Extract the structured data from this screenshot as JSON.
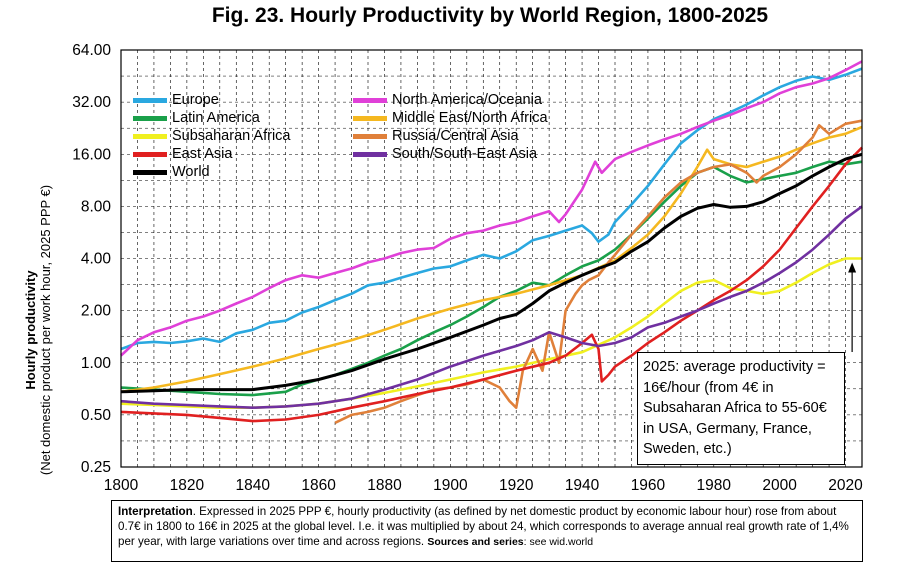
{
  "chart_data": {
    "type": "line",
    "title": "Fig. 23. Hourly Productivity by World Region, 1800-2025",
    "ylabel": "Hourly productivity",
    "ylabel_sub": "(Net domestic product per work hour, 2025 PPP €)",
    "xlabel": "",
    "xlim": [
      1800,
      2025
    ],
    "ylim": [
      0.25,
      64
    ],
    "y_scale": "log2",
    "grid": true,
    "x_ticks": [
      "1800",
      "1820",
      "1840",
      "1860",
      "1880",
      "1900",
      "1920",
      "1940",
      "1960",
      "1980",
      "2000",
      "2020"
    ],
    "x_tick_values": [
      1800,
      1820,
      1840,
      1860,
      1880,
      1900,
      1920,
      1940,
      1960,
      1980,
      2000,
      2020
    ],
    "y_ticks": [
      "0.25",
      "0.50",
      "1.00",
      "2.00",
      "4.00",
      "8.00",
      "16.00",
      "32.00",
      "64.00"
    ],
    "y_tick_values": [
      0.25,
      0.5,
      1,
      2,
      4,
      8,
      16,
      32,
      64
    ],
    "legend_position": "top-left",
    "series": [
      {
        "name": "Europe",
        "color": "#2aa8e0",
        "x": [
          1800,
          1805,
          1810,
          1815,
          1820,
          1825,
          1830,
          1835,
          1840,
          1845,
          1850,
          1855,
          1860,
          1865,
          1870,
          1875,
          1880,
          1885,
          1890,
          1895,
          1900,
          1905,
          1910,
          1915,
          1920,
          1925,
          1930,
          1935,
          1940,
          1943,
          1945,
          1948,
          1950,
          1955,
          1960,
          1965,
          1970,
          1975,
          1980,
          1985,
          1990,
          1995,
          2000,
          2005,
          2010,
          2015,
          2020,
          2025
        ],
        "y": [
          1.2,
          1.3,
          1.32,
          1.3,
          1.33,
          1.38,
          1.32,
          1.48,
          1.55,
          1.7,
          1.75,
          1.95,
          2.1,
          2.3,
          2.5,
          2.8,
          2.9,
          3.1,
          3.3,
          3.5,
          3.6,
          3.9,
          4.2,
          4.0,
          4.4,
          5.1,
          5.4,
          5.8,
          6.2,
          5.6,
          5.0,
          5.5,
          6.5,
          8.2,
          10.5,
          14.0,
          18.5,
          22.0,
          25.5,
          28.0,
          31.0,
          35.0,
          39.0,
          42.5,
          45.0,
          43.0,
          46.0,
          50.0
        ]
      },
      {
        "name": "North America/Oceania",
        "color": "#e040d8",
        "x": [
          1800,
          1805,
          1810,
          1815,
          1820,
          1825,
          1830,
          1835,
          1840,
          1845,
          1850,
          1855,
          1860,
          1865,
          1870,
          1875,
          1880,
          1885,
          1890,
          1895,
          1900,
          1905,
          1910,
          1915,
          1920,
          1925,
          1930,
          1933,
          1935,
          1940,
          1944,
          1946,
          1950,
          1955,
          1960,
          1965,
          1970,
          1975,
          1980,
          1985,
          1990,
          1995,
          2000,
          2005,
          2010,
          2015,
          2020,
          2025
        ],
        "y": [
          1.1,
          1.35,
          1.5,
          1.6,
          1.75,
          1.85,
          2.0,
          2.2,
          2.4,
          2.7,
          3.0,
          3.2,
          3.1,
          3.3,
          3.5,
          3.8,
          4.0,
          4.3,
          4.5,
          4.6,
          5.2,
          5.6,
          5.8,
          6.2,
          6.5,
          7.0,
          7.5,
          6.5,
          7.2,
          10.0,
          14.5,
          12.5,
          15.0,
          16.5,
          18.0,
          19.5,
          21.0,
          23.0,
          25.0,
          27.0,
          29.5,
          32.0,
          36.0,
          39.0,
          41.0,
          44.0,
          49.0,
          55.0
        ]
      },
      {
        "name": "Latin America",
        "color": "#1aa04a",
        "x": [
          1800,
          1810,
          1820,
          1830,
          1840,
          1850,
          1855,
          1860,
          1865,
          1870,
          1875,
          1880,
          1885,
          1890,
          1895,
          1900,
          1905,
          1910,
          1915,
          1920,
          1925,
          1930,
          1935,
          1940,
          1945,
          1950,
          1955,
          1960,
          1965,
          1970,
          1975,
          1980,
          1985,
          1990,
          1995,
          2000,
          2005,
          2010,
          2015,
          2020,
          2025
        ],
        "y": [
          0.72,
          0.7,
          0.68,
          0.66,
          0.65,
          0.68,
          0.75,
          0.8,
          0.85,
          0.92,
          1.0,
          1.1,
          1.2,
          1.35,
          1.5,
          1.65,
          1.85,
          2.1,
          2.4,
          2.6,
          2.9,
          2.8,
          3.2,
          3.6,
          3.9,
          4.5,
          5.5,
          6.8,
          8.5,
          10.5,
          12.5,
          13.5,
          12.0,
          11.0,
          11.5,
          12.0,
          12.5,
          13.5,
          14.5,
          14.0,
          14.5
        ]
      },
      {
        "name": "Middle East/North Africa",
        "color": "#f5b820",
        "x": [
          1800,
          1810,
          1820,
          1830,
          1840,
          1850,
          1860,
          1870,
          1880,
          1890,
          1900,
          1910,
          1920,
          1930,
          1940,
          1950,
          1955,
          1960,
          1965,
          1970,
          1975,
          1978,
          1980,
          1985,
          1990,
          1995,
          2000,
          2005,
          2010,
          2015,
          2020,
          2025
        ],
        "y": [
          0.68,
          0.72,
          0.78,
          0.86,
          0.95,
          1.06,
          1.2,
          1.35,
          1.55,
          1.8,
          2.05,
          2.3,
          2.5,
          2.8,
          3.2,
          3.9,
          4.6,
          5.5,
          7.0,
          9.5,
          13.5,
          17.0,
          15.0,
          14.0,
          13.5,
          14.5,
          15.5,
          17.0,
          18.5,
          20.0,
          21.0,
          23.0
        ]
      },
      {
        "name": "Subsaharan Africa",
        "color": "#f0f020",
        "x": [
          1800,
          1810,
          1820,
          1830,
          1840,
          1850,
          1860,
          1870,
          1880,
          1890,
          1900,
          1910,
          1920,
          1930,
          1940,
          1950,
          1955,
          1960,
          1965,
          1970,
          1975,
          1980,
          1985,
          1990,
          1995,
          2000,
          2005,
          2010,
          2015,
          2020,
          2025
        ],
        "y": [
          0.58,
          0.57,
          0.56,
          0.55,
          0.55,
          0.56,
          0.58,
          0.62,
          0.67,
          0.73,
          0.8,
          0.88,
          0.95,
          1.05,
          1.15,
          1.4,
          1.6,
          1.85,
          2.2,
          2.6,
          2.9,
          3.0,
          2.7,
          2.6,
          2.5,
          2.6,
          2.9,
          3.3,
          3.7,
          4.0,
          4.0
        ]
      },
      {
        "name": "Russia/Central Asia",
        "color": "#e0803a",
        "x": [
          1865,
          1870,
          1875,
          1880,
          1885,
          1890,
          1895,
          1900,
          1905,
          1910,
          1915,
          1918,
          1920,
          1922,
          1925,
          1928,
          1930,
          1933,
          1935,
          1938,
          1940,
          1942,
          1945,
          1948,
          1950,
          1955,
          1960,
          1965,
          1970,
          1975,
          1980,
          1985,
          1990,
          1993,
          1995,
          2000,
          2005,
          2010,
          2012,
          2015,
          2020,
          2025
        ],
        "y": [
          0.45,
          0.5,
          0.52,
          0.55,
          0.6,
          0.65,
          0.7,
          0.72,
          0.75,
          0.8,
          0.72,
          0.6,
          0.55,
          0.9,
          1.2,
          0.9,
          1.5,
          1.0,
          2.0,
          2.5,
          2.8,
          3.0,
          3.2,
          3.8,
          4.2,
          5.5,
          7.0,
          9.0,
          11.0,
          12.5,
          13.5,
          14.0,
          12.5,
          11.0,
          12.0,
          13.5,
          16.0,
          20.0,
          23.5,
          21.0,
          24.0,
          25.0
        ]
      },
      {
        "name": "East Asia",
        "color": "#e02020",
        "x": [
          1800,
          1810,
          1820,
          1830,
          1840,
          1850,
          1860,
          1870,
          1880,
          1890,
          1900,
          1910,
          1920,
          1930,
          1935,
          1940,
          1943,
          1945,
          1946,
          1948,
          1950,
          1955,
          1960,
          1965,
          1970,
          1975,
          1980,
          1985,
          1990,
          1995,
          2000,
          2005,
          2010,
          2015,
          2020,
          2025
        ],
        "y": [
          0.52,
          0.51,
          0.5,
          0.48,
          0.46,
          0.47,
          0.5,
          0.55,
          0.6,
          0.66,
          0.72,
          0.8,
          0.9,
          1.0,
          1.1,
          1.3,
          1.45,
          1.2,
          0.78,
          0.85,
          0.95,
          1.1,
          1.3,
          1.5,
          1.75,
          2.0,
          2.3,
          2.6,
          3.0,
          3.6,
          4.5,
          6.0,
          8.0,
          10.5,
          14.0,
          17.5
        ]
      },
      {
        "name": "South/South-East Asia",
        "color": "#7030a0",
        "x": [
          1800,
          1810,
          1820,
          1830,
          1840,
          1850,
          1860,
          1870,
          1880,
          1890,
          1900,
          1910,
          1920,
          1925,
          1930,
          1935,
          1940,
          1945,
          1950,
          1955,
          1960,
          1965,
          1970,
          1975,
          1980,
          1985,
          1990,
          1995,
          2000,
          2005,
          2010,
          2015,
          2020,
          2025
        ],
        "y": [
          0.6,
          0.58,
          0.57,
          0.56,
          0.55,
          0.56,
          0.58,
          0.62,
          0.7,
          0.8,
          0.95,
          1.1,
          1.25,
          1.35,
          1.5,
          1.4,
          1.3,
          1.25,
          1.3,
          1.4,
          1.6,
          1.7,
          1.85,
          2.0,
          2.2,
          2.4,
          2.6,
          2.9,
          3.3,
          3.8,
          4.5,
          5.5,
          6.8,
          8.0
        ]
      },
      {
        "name": "World",
        "color": "#000000",
        "x": [
          1800,
          1810,
          1820,
          1830,
          1840,
          1850,
          1860,
          1870,
          1880,
          1890,
          1900,
          1910,
          1915,
          1920,
          1925,
          1930,
          1935,
          1940,
          1945,
          1950,
          1955,
          1960,
          1965,
          1970,
          1975,
          1980,
          1985,
          1990,
          1995,
          2000,
          2005,
          2010,
          2015,
          2020,
          2025
        ],
        "y": [
          0.68,
          0.69,
          0.7,
          0.7,
          0.7,
          0.74,
          0.8,
          0.9,
          1.05,
          1.2,
          1.4,
          1.65,
          1.8,
          1.9,
          2.2,
          2.6,
          2.9,
          3.2,
          3.5,
          3.8,
          4.4,
          5.0,
          6.0,
          7.0,
          7.8,
          8.2,
          7.9,
          8.0,
          8.5,
          9.5,
          10.5,
          12.0,
          13.5,
          15.0,
          16.0
        ]
      }
    ],
    "annotation": "2025: average productivity = 16€/hour (from 4€ in Subsaharan Africa to 55-60€ in USA, Germany, France, Sweden, etc.)"
  },
  "interpretation": {
    "label": "Interpretation",
    "text": ". Expressed in 2025 PPP €, hourly productivity (as defined by net domestic product by economic labour hour) rose from about 0.7€ in 1800 to 16€ in 2025 at the global level. I.e. it was multiplied by about 24, which corresponds to average annual real growth rate of 1,4% per year, with large variations over time and across regions.",
    "sources": "Sources and series",
    "sources_text": ": see wid.world"
  }
}
